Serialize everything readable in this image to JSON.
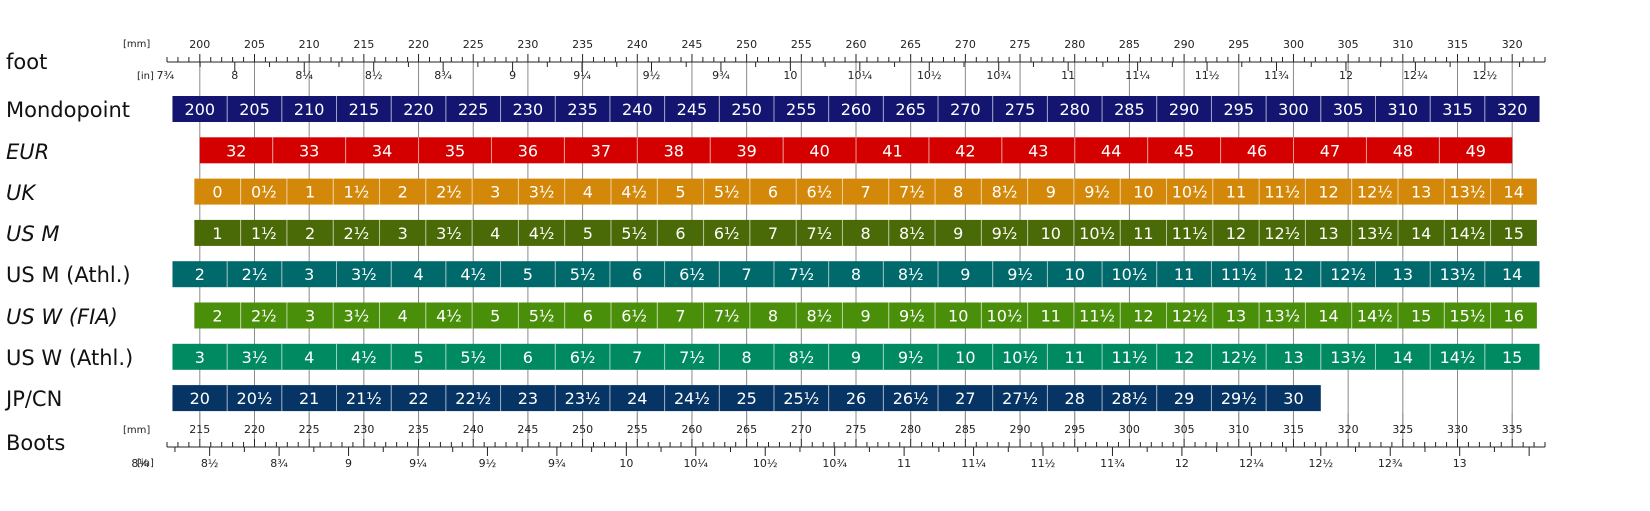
{
  "chart_data": {
    "type": "table",
    "foot_axis": {
      "label": "foot",
      "mm_unit": "[mm]",
      "in_unit": "[in]",
      "mm_range": [
        197,
        323
      ],
      "mm_labels": [
        200,
        205,
        210,
        215,
        220,
        225,
        230,
        235,
        240,
        245,
        250,
        255,
        260,
        265,
        270,
        275,
        280,
        285,
        290,
        295,
        300,
        305,
        310,
        315,
        320
      ],
      "in_labels": [
        {
          "v": 7.75,
          "t": "7¾"
        },
        {
          "v": 8,
          "t": "8"
        },
        {
          "v": 8.25,
          "t": "8¼"
        },
        {
          "v": 8.5,
          "t": "8½"
        },
        {
          "v": 8.75,
          "t": "8¾"
        },
        {
          "v": 9,
          "t": "9"
        },
        {
          "v": 9.25,
          "t": "9¼"
        },
        {
          "v": 9.5,
          "t": "9½"
        },
        {
          "v": 9.75,
          "t": "9¾"
        },
        {
          "v": 10,
          "t": "10"
        },
        {
          "v": 10.25,
          "t": "10¼"
        },
        {
          "v": 10.5,
          "t": "10½"
        },
        {
          "v": 10.75,
          "t": "10¾"
        },
        {
          "v": 11,
          "t": "11"
        },
        {
          "v": 11.25,
          "t": "11¼"
        },
        {
          "v": 11.5,
          "t": "11½"
        },
        {
          "v": 11.75,
          "t": "11¾"
        },
        {
          "v": 12,
          "t": "12"
        },
        {
          "v": 12.25,
          "t": "12¼"
        },
        {
          "v": 12.5,
          "t": "12½"
        }
      ]
    },
    "boots_axis": {
      "label": "Boots",
      "mm_unit": "[mm]",
      "in_unit": "[in]",
      "mm_range": [
        212,
        338
      ],
      "mm_labels": [
        215,
        220,
        225,
        230,
        235,
        240,
        245,
        250,
        255,
        260,
        265,
        270,
        275,
        280,
        285,
        290,
        295,
        300,
        305,
        310,
        315,
        320,
        325,
        330,
        335
      ],
      "in_labels": [
        {
          "v": 8.25,
          "t": "8¼"
        },
        {
          "v": 8.5,
          "t": "8½"
        },
        {
          "v": 8.75,
          "t": "8¾"
        },
        {
          "v": 9,
          "t": "9"
        },
        {
          "v": 9.25,
          "t": "9¼"
        },
        {
          "v": 9.5,
          "t": "9½"
        },
        {
          "v": 9.75,
          "t": "9¾"
        },
        {
          "v": 10,
          "t": "10"
        },
        {
          "v": 10.25,
          "t": "10¼"
        },
        {
          "v": 10.5,
          "t": "10½"
        },
        {
          "v": 10.75,
          "t": "10¾"
        },
        {
          "v": 11,
          "t": "11"
        },
        {
          "v": 11.25,
          "t": "11¼"
        },
        {
          "v": 11.5,
          "t": "11½"
        },
        {
          "v": 11.75,
          "t": "11¾"
        },
        {
          "v": 12,
          "t": "12"
        },
        {
          "v": 12.25,
          "t": "12¼"
        },
        {
          "v": 12.5,
          "t": "12½"
        },
        {
          "v": 12.75,
          "t": "12¾"
        },
        {
          "v": 13,
          "t": "13"
        }
      ]
    },
    "rows": [
      {
        "name": "Mondopoint",
        "italic": false,
        "color": "#141570",
        "start_mm": 197.5,
        "step_mm": 5,
        "labels": [
          "200",
          "205",
          "210",
          "215",
          "220",
          "225",
          "230",
          "235",
          "240",
          "245",
          "250",
          "255",
          "260",
          "265",
          "270",
          "275",
          "280",
          "285",
          "290",
          "295",
          "300",
          "305",
          "310",
          "315",
          "320"
        ]
      },
      {
        "name": "EUR",
        "italic": true,
        "color": "#d40000",
        "start_mm": 200,
        "step_mm": 6.667,
        "labels": [
          "32",
          "33",
          "34",
          "35",
          "36",
          "37",
          "38",
          "39",
          "40",
          "41",
          "42",
          "43",
          "44",
          "45",
          "46",
          "47",
          "48",
          "49"
        ]
      },
      {
        "name": "UK",
        "italic": true,
        "color": "#d4880a",
        "start_mm": 199.5,
        "step_mm": 4.233,
        "labels": [
          "0",
          "0½",
          "1",
          "1½",
          "2",
          "2½",
          "3",
          "3½",
          "4",
          "4½",
          "5",
          "5½",
          "6",
          "6½",
          "7",
          "7½",
          "8",
          "8½",
          "9",
          "9½",
          "10",
          "10½",
          "11",
          "11½",
          "12",
          "12½",
          "13",
          "13½",
          "14"
        ]
      },
      {
        "name": "US M",
        "italic": true,
        "color": "#4a6a07",
        "start_mm": 199.5,
        "step_mm": 4.233,
        "labels": [
          "1",
          "1½",
          "2",
          "2½",
          "3",
          "3½",
          "4",
          "4½",
          "5",
          "5½",
          "6",
          "6½",
          "7",
          "7½",
          "8",
          "8½",
          "9",
          "9½",
          "10",
          "10½",
          "11",
          "11½",
          "12",
          "12½",
          "13",
          "13½",
          "14",
          "14½",
          "15"
        ]
      },
      {
        "name": "US M (Athl.)",
        "italic": false,
        "color": "#00696b",
        "start_mm": 197.5,
        "step_mm": 5,
        "labels": [
          "2",
          "2½",
          "3",
          "3½",
          "4",
          "4½",
          "5",
          "5½",
          "6",
          "6½",
          "7",
          "7½",
          "8",
          "8½",
          "9",
          "9½",
          "10",
          "10½",
          "11",
          "11½",
          "12",
          "12½",
          "13",
          "13½",
          "14"
        ]
      },
      {
        "name": "US W (FIA)",
        "italic": true,
        "color": "#4a8f0a",
        "start_mm": 199.5,
        "step_mm": 4.233,
        "labels": [
          "2",
          "2½",
          "3",
          "3½",
          "4",
          "4½",
          "5",
          "5½",
          "6",
          "6½",
          "7",
          "7½",
          "8",
          "8½",
          "9",
          "9½",
          "10",
          "10½",
          "11",
          "11½",
          "12",
          "12½",
          "13",
          "13½",
          "14",
          "14½",
          "15",
          "15½",
          "16"
        ]
      },
      {
        "name": "US W (Athl.)",
        "italic": false,
        "color": "#008a62",
        "start_mm": 197.5,
        "step_mm": 5,
        "labels": [
          "3",
          "3½",
          "4",
          "4½",
          "5",
          "5½",
          "6",
          "6½",
          "7",
          "7½",
          "8",
          "8½",
          "9",
          "9½",
          "10",
          "10½",
          "11",
          "11½",
          "12",
          "12½",
          "13",
          "13½",
          "14",
          "14½",
          "15"
        ]
      },
      {
        "name": "JP/CN",
        "italic": false,
        "color": "#063464",
        "start_mm": 197.5,
        "step_mm": 5,
        "labels": [
          "20",
          "20½",
          "21",
          "21½",
          "22",
          "22½",
          "23",
          "23½",
          "24",
          "24½",
          "25",
          "25½",
          "26",
          "26½",
          "27",
          "27½",
          "28",
          "28½",
          "29",
          "29½",
          "30"
        ]
      }
    ]
  }
}
